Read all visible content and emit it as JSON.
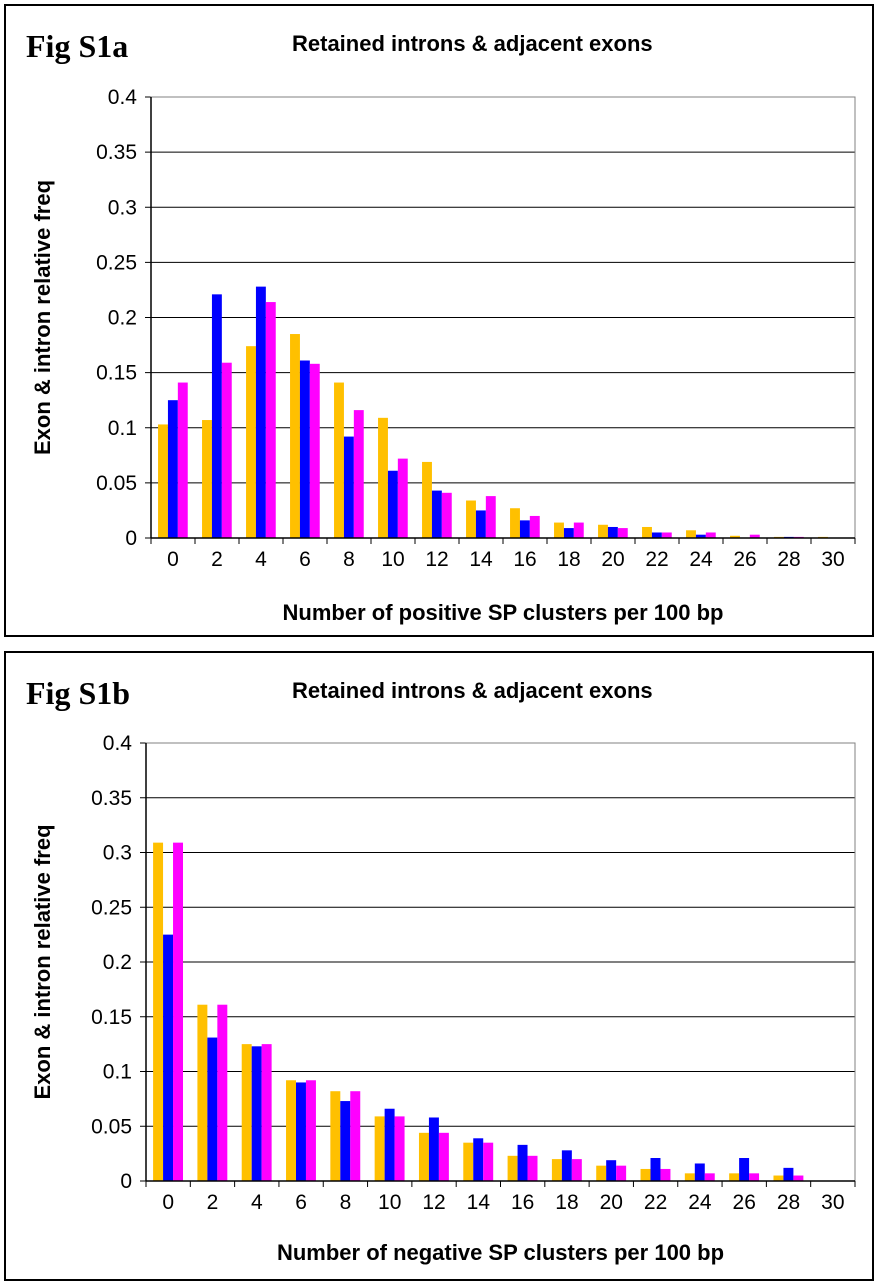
{
  "colors": {
    "series1": "#FFC000",
    "series2": "#0000FF",
    "series3": "#FF00FF",
    "gridline": "#000000",
    "plot_border": "#808080"
  },
  "chart_data": [
    {
      "type": "bar",
      "fig_label": "Fig S1a",
      "title": "Retained introns & adjacent exons",
      "xlabel": "Number of positive SP clusters per 100 bp",
      "ylabel": "Exon & intron relative freq",
      "ylim": [
        0,
        0.4
      ],
      "yticks": [
        "0",
        "0.05",
        "0.1",
        "0.15",
        "0.2",
        "0.25",
        "0.3",
        "0.35",
        "0.4"
      ],
      "categories": [
        "0",
        "2",
        "4",
        "6",
        "8",
        "10",
        "12",
        "14",
        "16",
        "18",
        "20",
        "22",
        "24",
        "26",
        "28",
        "30"
      ],
      "grid": true,
      "legend": "none",
      "series": [
        {
          "values": [
            0.103,
            0.107,
            0.174,
            0.185,
            0.141,
            0.109,
            0.069,
            0.034,
            0.027,
            0.014,
            0.012,
            0.01,
            0.007,
            0.002,
            0.001,
            0.001
          ]
        },
        {
          "values": [
            0.125,
            0.221,
            0.228,
            0.161,
            0.092,
            0.061,
            0.043,
            0.025,
            0.016,
            0.009,
            0.01,
            0.005,
            0.003,
            0.0,
            0.001,
            0.0
          ]
        },
        {
          "values": [
            0.141,
            0.159,
            0.214,
            0.158,
            0.116,
            0.072,
            0.041,
            0.038,
            0.02,
            0.014,
            0.009,
            0.005,
            0.005,
            0.003,
            0.001,
            0.0
          ]
        }
      ]
    },
    {
      "type": "bar",
      "fig_label": "Fig S1b",
      "title": "Retained introns & adjacent exons",
      "xlabel": "Number of negative SP clusters per 100 bp",
      "ylabel": "Exon & intron relative freq",
      "ylim": [
        0,
        0.4
      ],
      "yticks": [
        "0",
        "0.05",
        "0.1",
        "0.15",
        "0.2",
        "0.25",
        "0.3",
        "0.35",
        "0.4"
      ],
      "categories": [
        "0",
        "2",
        "4",
        "6",
        "8",
        "10",
        "12",
        "14",
        "16",
        "18",
        "20",
        "22",
        "24",
        "26",
        "28",
        "30"
      ],
      "grid": true,
      "legend": "none",
      "series": [
        {
          "values": [
            0.309,
            0.161,
            0.125,
            0.092,
            0.082,
            0.059,
            0.044,
            0.035,
            0.023,
            0.02,
            0.014,
            0.011,
            0.007,
            0.007,
            0.005,
            0.0
          ]
        },
        {
          "values": [
            0.225,
            0.131,
            0.123,
            0.09,
            0.073,
            0.066,
            0.058,
            0.039,
            0.033,
            0.028,
            0.019,
            0.021,
            0.016,
            0.021,
            0.012,
            0.0
          ]
        },
        {
          "values": [
            0.309,
            0.161,
            0.125,
            0.092,
            0.082,
            0.059,
            0.044,
            0.035,
            0.023,
            0.02,
            0.014,
            0.011,
            0.007,
            0.007,
            0.005,
            0.0
          ]
        }
      ]
    }
  ]
}
